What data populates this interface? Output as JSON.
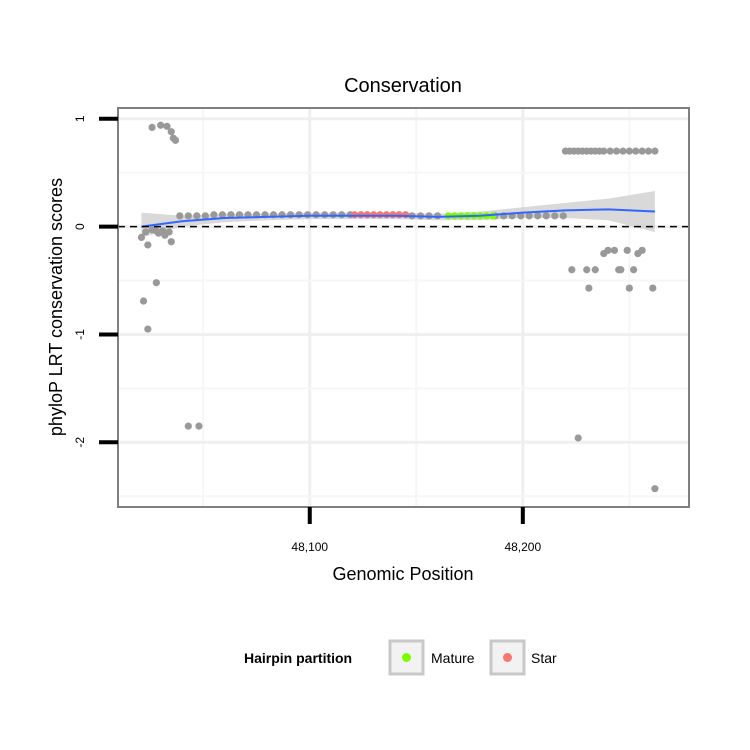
{
  "chart_data": {
    "type": "scatter",
    "title": "Conservation",
    "xlabel": "Genomic Position",
    "ylabel": "phyloP LRT conservation scores",
    "xlim": [
      48010,
      48278
    ],
    "ylim": [
      -2.6,
      1.1
    ],
    "x_ticks": [
      {
        "value": 48100,
        "label": "48,100"
      },
      {
        "value": 48200,
        "label": "48,200"
      }
    ],
    "y_ticks": [
      {
        "value": 1,
        "label": "1"
      },
      {
        "value": 0,
        "label": "0"
      },
      {
        "value": -1,
        "label": "-1"
      },
      {
        "value": -2,
        "label": "-2"
      }
    ],
    "grid": true,
    "reference_line": {
      "y": 0,
      "style": "dashed"
    },
    "points": [
      {
        "x": 48026,
        "y": 0.92
      },
      {
        "x": 48030,
        "y": 0.94
      },
      {
        "x": 48033,
        "y": 0.93
      },
      {
        "x": 48035,
        "y": 0.88
      },
      {
        "x": 48036,
        "y": 0.82
      },
      {
        "x": 48037,
        "y": 0.8
      },
      {
        "x": 48021,
        "y": -0.1
      },
      {
        "x": 48023,
        "y": -0.05
      },
      {
        "x": 48024,
        "y": -0.17
      },
      {
        "x": 48026,
        "y": -0.03
      },
      {
        "x": 48028,
        "y": -0.04
      },
      {
        "x": 48029,
        "y": -0.06
      },
      {
        "x": 48031,
        "y": -0.04
      },
      {
        "x": 48032,
        "y": -0.08
      },
      {
        "x": 48035,
        "y": -0.14
      },
      {
        "x": 48034,
        "y": -0.05
      },
      {
        "x": 48022,
        "y": -0.69
      },
      {
        "x": 48024,
        "y": -0.95
      },
      {
        "x": 48028,
        "y": -0.52
      },
      {
        "x": 48043,
        "y": -1.85
      },
      {
        "x": 48048,
        "y": -1.85
      },
      {
        "x": 48039,
        "y": 0.1
      },
      {
        "x": 48043,
        "y": 0.1
      },
      {
        "x": 48047,
        "y": 0.1
      },
      {
        "x": 48051,
        "y": 0.1
      },
      {
        "x": 48055,
        "y": 0.11
      },
      {
        "x": 48059,
        "y": 0.11
      },
      {
        "x": 48063,
        "y": 0.11
      },
      {
        "x": 48067,
        "y": 0.11
      },
      {
        "x": 48071,
        "y": 0.11
      },
      {
        "x": 48075,
        "y": 0.11
      },
      {
        "x": 48079,
        "y": 0.11
      },
      {
        "x": 48083,
        "y": 0.11
      },
      {
        "x": 48087,
        "y": 0.11
      },
      {
        "x": 48091,
        "y": 0.11
      },
      {
        "x": 48095,
        "y": 0.11
      },
      {
        "x": 48099,
        "y": 0.11
      },
      {
        "x": 48103,
        "y": 0.11
      },
      {
        "x": 48107,
        "y": 0.11
      },
      {
        "x": 48111,
        "y": 0.11
      },
      {
        "x": 48115,
        "y": 0.11
      },
      {
        "x": 48119,
        "y": 0.11
      },
      {
        "x": 48148,
        "y": 0.1
      },
      {
        "x": 48152,
        "y": 0.1
      },
      {
        "x": 48156,
        "y": 0.1
      },
      {
        "x": 48160,
        "y": 0.1
      },
      {
        "x": 48187,
        "y": 0.1
      },
      {
        "x": 48191,
        "y": 0.1
      },
      {
        "x": 48195,
        "y": 0.1
      },
      {
        "x": 48199,
        "y": 0.1
      },
      {
        "x": 48203,
        "y": 0.1
      },
      {
        "x": 48207,
        "y": 0.1
      },
      {
        "x": 48211,
        "y": 0.1
      },
      {
        "x": 48215,
        "y": 0.1
      },
      {
        "x": 48219,
        "y": 0.1
      },
      {
        "x": 48220,
        "y": 0.7
      },
      {
        "x": 48222,
        "y": 0.7
      },
      {
        "x": 48224,
        "y": 0.7
      },
      {
        "x": 48226,
        "y": 0.7
      },
      {
        "x": 48228,
        "y": 0.7
      },
      {
        "x": 48230,
        "y": 0.7
      },
      {
        "x": 48232,
        "y": 0.7
      },
      {
        "x": 48234,
        "y": 0.7
      },
      {
        "x": 48236,
        "y": 0.7
      },
      {
        "x": 48238,
        "y": 0.7
      },
      {
        "x": 48241,
        "y": 0.7
      },
      {
        "x": 48244,
        "y": 0.7
      },
      {
        "x": 48247,
        "y": 0.7
      },
      {
        "x": 48250,
        "y": 0.7
      },
      {
        "x": 48253,
        "y": 0.7
      },
      {
        "x": 48256,
        "y": 0.7
      },
      {
        "x": 48259,
        "y": 0.7
      },
      {
        "x": 48262,
        "y": 0.7
      },
      {
        "x": 48223,
        "y": -0.4
      },
      {
        "x": 48230,
        "y": -0.4
      },
      {
        "x": 48231,
        "y": -0.57
      },
      {
        "x": 48234,
        "y": -0.4
      },
      {
        "x": 48238,
        "y": -0.25
      },
      {
        "x": 48240,
        "y": -0.22
      },
      {
        "x": 48243,
        "y": -0.22
      },
      {
        "x": 48245,
        "y": -0.4
      },
      {
        "x": 48246,
        "y": -0.4
      },
      {
        "x": 48249,
        "y": -0.22
      },
      {
        "x": 48250,
        "y": -0.57
      },
      {
        "x": 48252,
        "y": -0.4
      },
      {
        "x": 48254,
        "y": -0.25
      },
      {
        "x": 48256,
        "y": -0.22
      },
      {
        "x": 48261,
        "y": -0.57
      },
      {
        "x": 48226,
        "y": -1.96
      },
      {
        "x": 48262,
        "y": -2.43
      }
    ],
    "series": [
      {
        "name": "Mature",
        "color": "#7CFC00",
        "x": [
          48165,
          48168,
          48171,
          48174,
          48177,
          48180,
          48183,
          48186
        ],
        "y": [
          0.1,
          0.1,
          0.1,
          0.1,
          0.1,
          0.1,
          0.1,
          0.1
        ]
      },
      {
        "name": "Star",
        "color": "#F8766D",
        "x": [
          48121,
          48124,
          48127,
          48130,
          48133,
          48136,
          48139,
          48142,
          48145
        ],
        "y": [
          0.11,
          0.11,
          0.11,
          0.11,
          0.11,
          0.11,
          0.11,
          0.11,
          0.11
        ]
      }
    ],
    "point_color": "#999999",
    "smooth": {
      "color": "#3366FF",
      "band_color": "#cccccc",
      "x": [
        48021,
        48040,
        48060,
        48080,
        48100,
        48120,
        48140,
        48160,
        48180,
        48200,
        48220,
        48240,
        48262
      ],
      "y": [
        0.0,
        0.05,
        0.08,
        0.09,
        0.1,
        0.1,
        0.1,
        0.09,
        0.1,
        0.13,
        0.15,
        0.16,
        0.14
      ],
      "lower": [
        -0.1,
        0.0,
        0.04,
        0.06,
        0.07,
        0.07,
        0.07,
        0.06,
        0.06,
        0.08,
        0.08,
        0.06,
        -0.05
      ],
      "upper": [
        0.13,
        0.1,
        0.12,
        0.12,
        0.13,
        0.13,
        0.13,
        0.12,
        0.14,
        0.18,
        0.22,
        0.26,
        0.33
      ]
    },
    "legend": {
      "title": "Hairpin partition",
      "position": "bottom",
      "items": [
        {
          "label": "Mature",
          "color": "#7CFC00"
        },
        {
          "label": "Star",
          "color": "#F8766D"
        }
      ]
    }
  }
}
